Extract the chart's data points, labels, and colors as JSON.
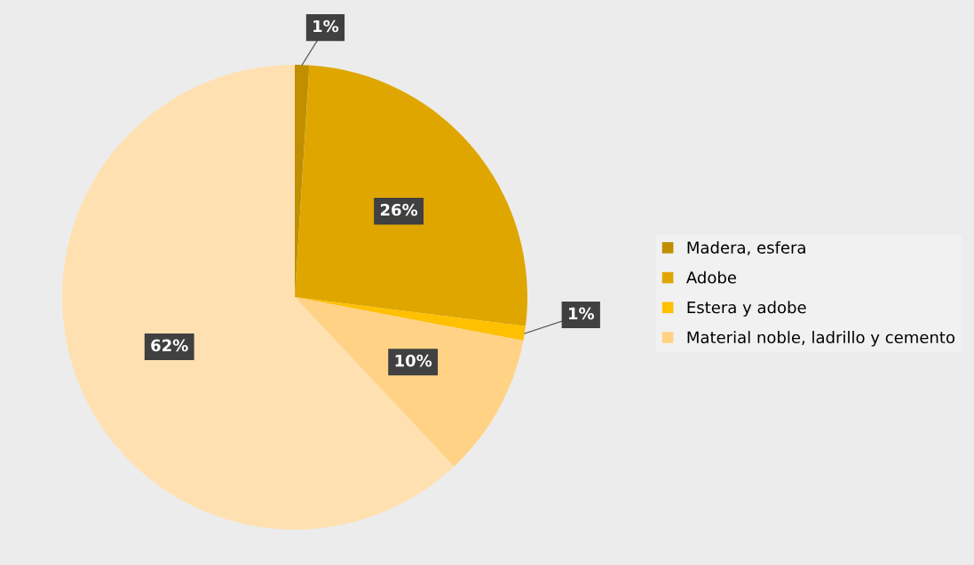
{
  "chart_data": {
    "type": "pie",
    "categories": [
      "Madera, esfera",
      "Adobe",
      "Estera y adobe",
      "Material noble, ladrillo y cemento",
      null
    ],
    "values": [
      1,
      26,
      1,
      10,
      62
    ],
    "colors": [
      "#bf8f00",
      "#dfa600",
      "#ffc000",
      "#ffd285",
      "#ffe0b0"
    ],
    "value_labels": [
      "1%",
      "26%",
      "1%",
      "10%",
      "62%"
    ],
    "legend": "right"
  }
}
